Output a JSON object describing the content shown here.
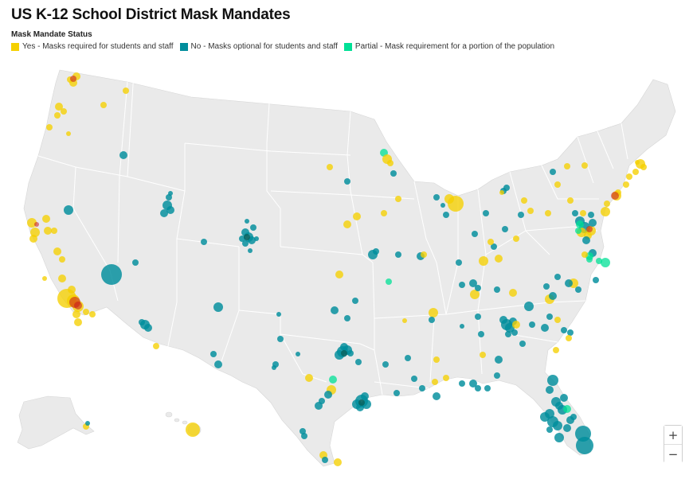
{
  "title": "US K-12 School District Mask Mandates",
  "legend": {
    "title": "Mask Mandate Status",
    "items": [
      {
        "key": "yes",
        "label": "Yes - Masks required for students and staff",
        "color": "#f5d000"
      },
      {
        "key": "no",
        "label": "No - Masks optional for students and staff",
        "color": "#008d9c"
      },
      {
        "key": "partial",
        "label": "Partial - Mask requirement for a portion of the population",
        "color": "#00e096"
      }
    ]
  },
  "colors": {
    "land": "#eaeaea",
    "border": "#ffffff",
    "water": "#ffffff",
    "hotspot": "#c8141e"
  },
  "zoom": {
    "in": "+",
    "out": "−"
  },
  "icons": {
    "zoom_in": "plus-icon",
    "zoom_out": "minus-icon"
  }
}
